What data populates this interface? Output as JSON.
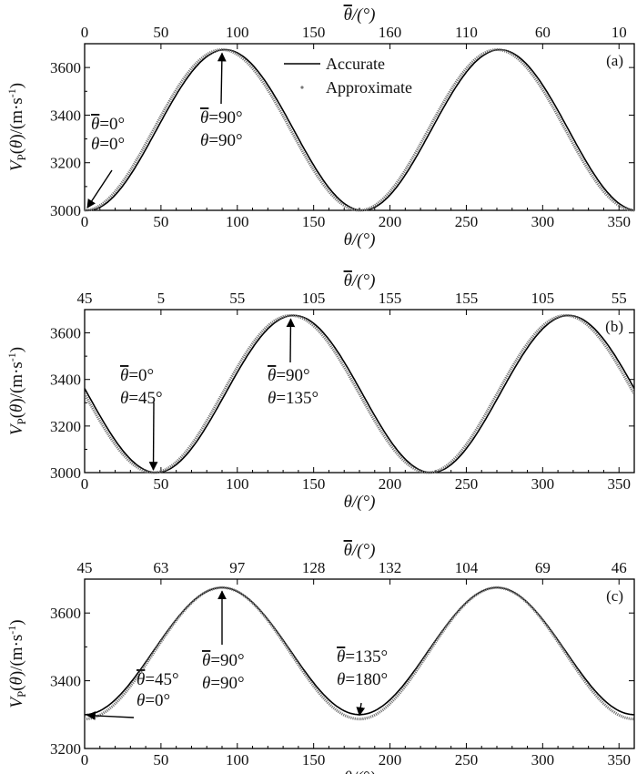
{
  "chart_data": [
    {
      "type": "line",
      "panel_label": "(a)",
      "xlabel": "θ/(°)",
      "top_xlabel": "θ̄/(°)",
      "ylabel": "VP(θ)/(m·s-1)",
      "xlim": [
        0,
        360
      ],
      "ylim": [
        3000,
        3700
      ],
      "x_ticks": [
        0,
        50,
        100,
        150,
        200,
        250,
        300,
        350
      ],
      "y_ticks": [
        3000,
        3200,
        3400,
        3600
      ],
      "top_tick_labels": [
        "0",
        "50",
        "100",
        "150",
        "160",
        "110",
        "60",
        "10"
      ],
      "legend": {
        "position": "top-center",
        "entries": [
          "Accurate",
          "Approximate"
        ]
      },
      "series": [
        {
          "name": "Accurate",
          "style": "line",
          "color": "#000000",
          "phase": 0,
          "vmin": 3000,
          "vmax": 3675,
          "shift": 2
        },
        {
          "name": "Approximate",
          "style": "dots",
          "color": "#777777",
          "phase": 0,
          "vmin": 3000,
          "vmax": 3675,
          "shift": 0
        }
      ],
      "annotations": [
        {
          "lines": [
            "θ̄=0°",
            "θ=0°"
          ],
          "point": [
            0,
            3000
          ]
        },
        {
          "lines": [
            "θ̄=90°",
            "θ=90°"
          ],
          "point": [
            90,
            3675
          ]
        }
      ]
    },
    {
      "type": "line",
      "panel_label": "(b)",
      "xlabel": "θ/(°)",
      "top_xlabel": "θ̄/(°)",
      "ylabel": "VP(θ)/(m·s-1)",
      "xlim": [
        0,
        360
      ],
      "ylim": [
        3000,
        3700
      ],
      "x_ticks": [
        0,
        50,
        100,
        150,
        200,
        250,
        300,
        350
      ],
      "y_ticks": [
        3000,
        3200,
        3400,
        3600
      ],
      "top_tick_labels": [
        "45",
        "5",
        "55",
        "105",
        "155",
        "155",
        "105",
        "55"
      ],
      "series": [
        {
          "name": "Accurate",
          "style": "line",
          "color": "#000000",
          "phase": 45,
          "vmin": 3000,
          "vmax": 3675,
          "shift": 2
        },
        {
          "name": "Approximate",
          "style": "dots",
          "color": "#777777",
          "phase": 45,
          "vmin": 3000,
          "vmax": 3675,
          "shift": 0
        }
      ],
      "annotations": [
        {
          "lines": [
            "θ̄=0°",
            "θ=45°"
          ],
          "point": [
            45,
            3000
          ]
        },
        {
          "lines": [
            "θ̄=90°",
            "θ=135°"
          ],
          "point": [
            135,
            3675
          ]
        }
      ]
    },
    {
      "type": "line",
      "panel_label": "(c)",
      "xlabel": "θ/(°)",
      "top_xlabel": "θ̄/(°)",
      "ylabel": "VP(θ)/(m·s-1)",
      "xlim": [
        0,
        360
      ],
      "ylim": [
        3200,
        3700
      ],
      "x_ticks": [
        0,
        50,
        100,
        150,
        200,
        250,
        300,
        350
      ],
      "y_ticks": [
        3200,
        3400,
        3600
      ],
      "top_tick_labels": [
        "45",
        "63",
        "97",
        "128",
        "132",
        "104",
        "69",
        "46"
      ],
      "series": [
        {
          "name": "Accurate",
          "style": "line",
          "color": "#000000",
          "phase": 0,
          "vmin": 3300,
          "vmax": 3675,
          "shift": 0
        },
        {
          "name": "Approximate",
          "style": "dots",
          "color": "#777777",
          "phase": 0,
          "vmin": 3287,
          "vmax": 3675,
          "shift": 0
        }
      ],
      "annotations": [
        {
          "lines": [
            "θ̄=45°",
            "θ=0°"
          ],
          "point": [
            0,
            3290
          ]
        },
        {
          "lines": [
            "θ̄=90°",
            "θ=90°"
          ],
          "point": [
            90,
            3675
          ]
        },
        {
          "lines": [
            "θ̄=135°",
            "θ=180°"
          ],
          "point": [
            180,
            3290
          ]
        }
      ]
    }
  ]
}
